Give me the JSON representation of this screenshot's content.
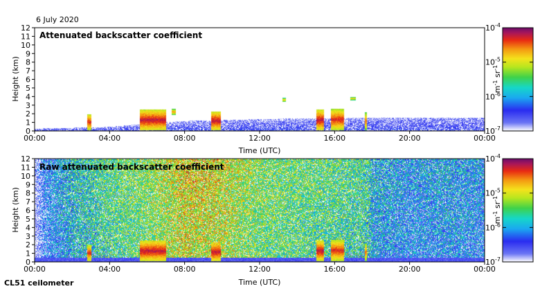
{
  "date_label": "6 July 2020",
  "instrument_label": "CL51 ceilometer",
  "colors": {
    "colormap": [
      "#ffffff",
      "#4a5cf2",
      "#2a2cf0",
      "#1aa8f0",
      "#16d7c8",
      "#3fd24a",
      "#b8e61e",
      "#f4e21c",
      "#f49a12",
      "#e82a12",
      "#a8165a",
      "#6a0d6a"
    ]
  },
  "chart_data": [
    {
      "type": "heatmap",
      "title": "Attenuated backscatter coefficient",
      "xlabel": "Time (UTC)",
      "ylabel": "Height (km)",
      "x_ticks": [
        "00:00",
        "04:00",
        "08:00",
        "12:00",
        "16:00",
        "20:00",
        "00:00"
      ],
      "x_range_hours": [
        0,
        24
      ],
      "y_ticks": [
        "0",
        "1",
        "2",
        "3",
        "4",
        "5",
        "6",
        "7",
        "8",
        "9",
        "10",
        "11",
        "12"
      ],
      "ylim": [
        0,
        12
      ],
      "colorbar": {
        "label_base": "m",
        "label_exp1": "-1",
        "label_mid": " sr",
        "label_exp2": "-1",
        "ticks": [
          {
            "value": -4,
            "base": "10",
            "exp": "-4"
          },
          {
            "value": -5,
            "base": "10",
            "exp": "-5"
          },
          {
            "value": -6,
            "base": "10",
            "exp": "-6"
          },
          {
            "value": -7,
            "base": "10",
            "exp": "-7"
          }
        ],
        "range_log10": [
          -7,
          -4
        ]
      },
      "boundary_layer_top_km": [
        [
          0,
          0.3
        ],
        [
          2,
          0.4
        ],
        [
          4,
          0.5
        ],
        [
          6,
          0.9
        ],
        [
          8,
          1.2
        ],
        [
          10,
          1.3
        ],
        [
          12,
          1.4
        ],
        [
          14,
          1.5
        ],
        [
          16,
          1.5
        ],
        [
          18,
          1.6
        ],
        [
          20,
          1.6
        ],
        [
          22,
          1.6
        ],
        [
          24,
          1.6
        ]
      ],
      "cloud_features": [
        {
          "start_h": 2.8,
          "end_h": 3.0,
          "base_km": 0.1,
          "top_km": 2.0,
          "log10_max": -4.3
        },
        {
          "start_h": 5.6,
          "end_h": 7.0,
          "base_km": 0.1,
          "top_km": 2.5,
          "log10_max": -4.2
        },
        {
          "start_h": 7.3,
          "end_h": 7.5,
          "base_km": 1.9,
          "top_km": 2.6,
          "log10_max": -4.6
        },
        {
          "start_h": 9.4,
          "end_h": 9.9,
          "base_km": 0.1,
          "top_km": 2.3,
          "log10_max": -4.2
        },
        {
          "start_h": 13.2,
          "end_h": 13.4,
          "base_km": 3.4,
          "top_km": 3.9,
          "log10_max": -4.8
        },
        {
          "start_h": 15.0,
          "end_h": 15.4,
          "base_km": 0.1,
          "top_km": 2.5,
          "log10_max": -4.2
        },
        {
          "start_h": 15.8,
          "end_h": 16.5,
          "base_km": 0.1,
          "top_km": 2.6,
          "log10_max": -4.3
        },
        {
          "start_h": 16.8,
          "end_h": 17.1,
          "base_km": 3.6,
          "top_km": 4.0,
          "log10_max": -4.8
        },
        {
          "start_h": 17.6,
          "end_h": 17.7,
          "base_km": 0.1,
          "top_km": 2.2,
          "log10_max": -4.5
        }
      ]
    },
    {
      "type": "heatmap",
      "title": "Raw attenuated backscatter coefficient",
      "xlabel": "Time (UTC)",
      "ylabel": "Height (km)",
      "x_ticks": [
        "00:00",
        "04:00",
        "08:00",
        "12:00",
        "16:00",
        "20:00",
        "00:00"
      ],
      "x_range_hours": [
        0,
        24
      ],
      "y_ticks": [
        "0",
        "1",
        "2",
        "3",
        "4",
        "5",
        "6",
        "7",
        "8",
        "9",
        "10",
        "11",
        "12"
      ],
      "ylim": [
        0,
        12
      ],
      "colorbar": {
        "label_base": "m",
        "label_exp1": "-1",
        "label_mid": " sr",
        "label_exp2": "-1",
        "ticks": [
          {
            "value": -4,
            "base": "10",
            "exp": "-4"
          },
          {
            "value": -5,
            "base": "10",
            "exp": "-5"
          },
          {
            "value": -6,
            "base": "10",
            "exp": "-6"
          },
          {
            "value": -7,
            "base": "10",
            "exp": "-7"
          }
        ],
        "range_log10": [
          -7,
          -4
        ]
      },
      "noise_level_by_hour": [
        [
          0,
          -6.9
        ],
        [
          0.5,
          -6.3
        ],
        [
          2,
          -5.8
        ],
        [
          4,
          -5.5
        ],
        [
          6,
          -5.3
        ],
        [
          8,
          -4.9
        ],
        [
          10,
          -5.0
        ],
        [
          12,
          -5.3
        ],
        [
          14,
          -5.4
        ],
        [
          16,
          -5.5
        ],
        [
          17.8,
          -5.6
        ],
        [
          18,
          -5.9
        ],
        [
          20,
          -6.1
        ],
        [
          22,
          -6.0
        ],
        [
          24,
          -6.1
        ]
      ],
      "cloud_features": [
        {
          "start_h": 2.8,
          "end_h": 3.0,
          "base_km": 0.1,
          "top_km": 2.0,
          "log10_max": -4.3
        },
        {
          "start_h": 5.6,
          "end_h": 7.0,
          "base_km": 0.1,
          "top_km": 2.5,
          "log10_max": -4.2
        },
        {
          "start_h": 9.4,
          "end_h": 9.9,
          "base_km": 0.1,
          "top_km": 2.3,
          "log10_max": -4.2
        },
        {
          "start_h": 15.0,
          "end_h": 15.4,
          "base_km": 0.1,
          "top_km": 2.5,
          "log10_max": -4.2
        },
        {
          "start_h": 15.8,
          "end_h": 16.5,
          "base_km": 0.1,
          "top_km": 2.6,
          "log10_max": -4.3
        },
        {
          "start_h": 17.6,
          "end_h": 17.7,
          "base_km": 0.1,
          "top_km": 2.2,
          "log10_max": -4.5
        }
      ]
    }
  ]
}
